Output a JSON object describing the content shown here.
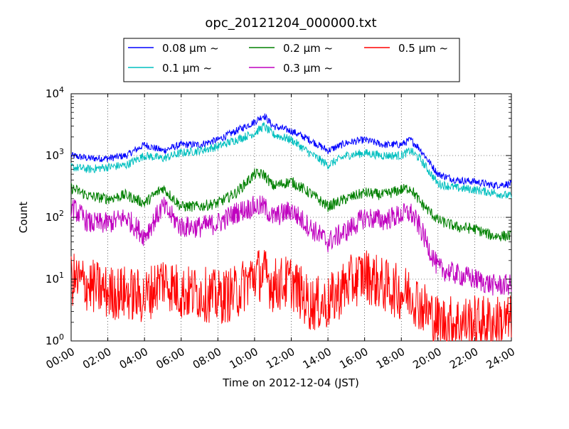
{
  "chart_data": {
    "type": "line",
    "title": "opc_20121204_000000.txt",
    "xlabel": "Time on 2012-12-04 (JST)",
    "ylabel": "Count",
    "yscale": "log",
    "ylim": [
      1,
      10000
    ],
    "xlim_hours": [
      0,
      24
    ],
    "grid": true,
    "legend_position": "top",
    "x_ticks": [
      "00:00",
      "02:00",
      "04:00",
      "06:00",
      "08:00",
      "10:00",
      "12:00",
      "14:00",
      "16:00",
      "18:00",
      "20:00",
      "22:00",
      "24:00"
    ],
    "y_ticks": [
      {
        "value": 1,
        "base": "10",
        "exp": "0"
      },
      {
        "value": 10,
        "base": "10",
        "exp": "1"
      },
      {
        "value": 100,
        "base": "10",
        "exp": "2"
      },
      {
        "value": 1000,
        "base": "10",
        "exp": "3"
      },
      {
        "value": 10000,
        "base": "10",
        "exp": "4"
      }
    ],
    "x_hours": [
      0,
      1,
      2,
      3,
      4,
      5,
      6,
      7,
      8,
      9,
      10,
      10.5,
      11,
      12,
      13,
      14,
      15,
      16,
      17,
      18,
      18.5,
      19,
      20,
      21,
      22,
      23,
      24
    ],
    "series": [
      {
        "name": "0.08 μm ~",
        "color": "#0000ff",
        "values": [
          1000,
          900,
          900,
          1000,
          1500,
          1200,
          1500,
          1500,
          1800,
          2500,
          3500,
          4500,
          3000,
          2500,
          1800,
          1200,
          1600,
          1800,
          1500,
          1500,
          1800,
          1300,
          500,
          400,
          380,
          330,
          350
        ]
      },
      {
        "name": "0.1 μm ~",
        "color": "#00bfbf",
        "values": [
          650,
          600,
          650,
          700,
          1000,
          900,
          1100,
          1200,
          1400,
          1800,
          2300,
          3000,
          2200,
          1800,
          1100,
          700,
          1000,
          1100,
          1000,
          1000,
          1200,
          900,
          350,
          300,
          280,
          250,
          220
        ]
      },
      {
        "name": "0.2 μm ~",
        "color": "#008000",
        "values": [
          300,
          220,
          200,
          230,
          170,
          300,
          150,
          150,
          170,
          250,
          500,
          500,
          320,
          380,
          250,
          150,
          200,
          250,
          230,
          280,
          300,
          180,
          90,
          70,
          65,
          50,
          50
        ]
      },
      {
        "name": "0.3 μm ~",
        "color": "#bf00bf",
        "values": [
          150,
          80,
          80,
          100,
          50,
          150,
          70,
          70,
          80,
          120,
          150,
          150,
          100,
          130,
          70,
          40,
          60,
          100,
          90,
          110,
          120,
          70,
          15,
          12,
          10,
          8,
          8
        ]
      },
      {
        "name": "0.5 μm ~",
        "color": "#ff0000",
        "values": [
          10,
          8,
          6,
          6,
          5,
          10,
          6,
          6,
          5,
          6,
          12,
          12,
          8,
          9,
          4,
          4,
          8,
          12,
          8,
          6,
          6,
          4,
          2,
          2,
          2,
          2,
          2
        ]
      }
    ]
  }
}
